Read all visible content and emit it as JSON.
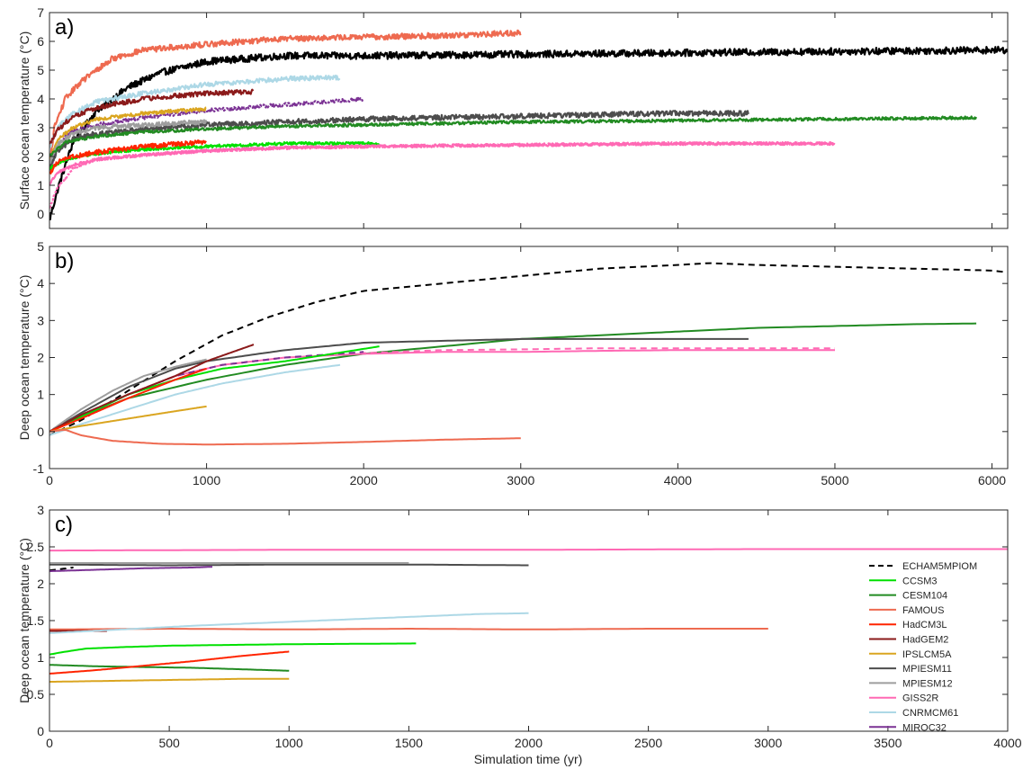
{
  "xlabel": "Simulation time (yr)",
  "chart_data": [
    {
      "panel": "a)",
      "type": "line",
      "ylabel": "Surface ocean temperature (°C)",
      "xlim": [
        0,
        6100
      ],
      "ylim": [
        -0.5,
        7
      ],
      "xticks": [],
      "yticks": [
        0,
        1,
        2,
        3,
        4,
        5,
        6,
        7
      ],
      "series": [
        {
          "color": "#000000",
          "dashed": false,
          "noise": 0.12,
          "x": [
            0,
            60,
            150,
            300,
            500,
            700,
            1000,
            1500,
            2000,
            3000,
            4000,
            5000,
            6100
          ],
          "values": [
            -0.2,
            1.0,
            2.5,
            3.6,
            4.4,
            4.9,
            5.3,
            5.5,
            5.5,
            5.55,
            5.6,
            5.65,
            5.7
          ]
        },
        {
          "color": "#EE6A50",
          "dashed": false,
          "noise": 0.1,
          "x": [
            0,
            30,
            100,
            200,
            400,
            600,
            1000,
            1500,
            2000,
            2500,
            3000
          ],
          "values": [
            1.6,
            3.0,
            4.0,
            4.6,
            5.4,
            5.7,
            5.9,
            6.1,
            6.15,
            6.2,
            6.3
          ]
        },
        {
          "color": "#ADD8E6",
          "dashed": false,
          "noise": 0.08,
          "x": [
            0,
            50,
            150,
            300,
            600,
            1000,
            1500,
            1850
          ],
          "values": [
            2.3,
            3.0,
            3.5,
            3.9,
            4.2,
            4.5,
            4.7,
            4.75
          ]
        },
        {
          "color": "#8B1A1A",
          "dashed": false,
          "noise": 0.08,
          "x": [
            0,
            50,
            150,
            300,
            600,
            1000,
            1300
          ],
          "values": [
            2.4,
            2.9,
            3.4,
            3.7,
            4.0,
            4.2,
            4.25
          ]
        },
        {
          "color": "#7B3294",
          "dashed": true,
          "noise": 0.06,
          "x": [
            0,
            60,
            150,
            300,
            600,
            1000,
            1500,
            2000
          ],
          "values": [
            1.5,
            2.5,
            2.9,
            3.1,
            3.35,
            3.6,
            3.8,
            4.0
          ]
        },
        {
          "color": "#DAA520",
          "dashed": false,
          "noise": 0.06,
          "x": [
            0,
            50,
            150,
            300,
            600,
            1000
          ],
          "values": [
            1.8,
            2.6,
            3.0,
            3.3,
            3.5,
            3.65
          ]
        },
        {
          "color": "#4D4D4D",
          "dashed": false,
          "noise": 0.09,
          "x": [
            0,
            50,
            150,
            300,
            600,
            1000,
            1500,
            2000,
            2500,
            3000,
            3500,
            4000,
            4450
          ],
          "values": [
            1.6,
            2.2,
            2.6,
            2.8,
            2.95,
            3.1,
            3.2,
            3.3,
            3.35,
            3.4,
            3.45,
            3.5,
            3.5
          ]
        },
        {
          "color": "#9E9E9E",
          "dashed": false,
          "noise": 0.08,
          "x": [
            0,
            50,
            150,
            300,
            600,
            1000
          ],
          "values": [
            1.8,
            2.4,
            2.8,
            3.0,
            3.1,
            3.2
          ]
        },
        {
          "color": "#228B22",
          "dashed": false,
          "noise": 0.05,
          "x": [
            0,
            100,
            300,
            600,
            1000,
            1500,
            2000,
            3000,
            4000,
            5000,
            5900
          ],
          "values": [
            2.0,
            2.5,
            2.7,
            2.85,
            2.95,
            3.05,
            3.1,
            3.2,
            3.25,
            3.3,
            3.35
          ]
        },
        {
          "color": "#00E000",
          "dashed": false,
          "noise": 0.05,
          "x": [
            0,
            100,
            300,
            600,
            1000,
            1500,
            2100
          ],
          "values": [
            1.6,
            1.9,
            2.1,
            2.25,
            2.35,
            2.45,
            2.45
          ]
        },
        {
          "color": "#FF2400",
          "dashed": false,
          "noise": 0.08,
          "x": [
            0,
            50,
            150,
            300,
            600,
            1000
          ],
          "values": [
            1.4,
            1.8,
            2.0,
            2.15,
            2.35,
            2.5
          ]
        },
        {
          "color": "#FF69B4",
          "dashed": true,
          "noise": 0.05,
          "x": [
            0,
            40,
            150,
            300,
            600,
            1000,
            1500,
            2000,
            3000,
            4000,
            5000
          ],
          "values": [
            0.2,
            0.8,
            1.6,
            1.9,
            2.05,
            2.2,
            2.3,
            2.35,
            2.4,
            2.45,
            2.45
          ]
        },
        {
          "color": "#FF69B4",
          "dashed": false,
          "noise": 0.05,
          "x": [
            0,
            40,
            150,
            300,
            600,
            1000,
            1500,
            2000,
            3000,
            4000,
            5000
          ],
          "values": [
            1.0,
            1.4,
            1.7,
            1.9,
            2.05,
            2.2,
            2.3,
            2.35,
            2.4,
            2.45,
            2.45
          ]
        }
      ]
    },
    {
      "panel": "b)",
      "type": "line",
      "ylabel": "Deep ocean temperature (°C)",
      "xlim": [
        0,
        6100
      ],
      "ylim": [
        -1,
        5
      ],
      "xticks": [
        0,
        1000,
        2000,
        3000,
        4000,
        5000,
        6000
      ],
      "yticks": [
        -1,
        0,
        1,
        2,
        3,
        4,
        5
      ],
      "series": [
        {
          "color": "#000000",
          "dashed": true,
          "x": [
            0,
            200,
            500,
            800,
            1100,
            1400,
            1700,
            2000,
            2500,
            3000,
            3500,
            4000,
            4200,
            4500,
            5000,
            5500,
            6000,
            6100
          ],
          "values": [
            -0.1,
            0.3,
            1.1,
            1.9,
            2.6,
            3.1,
            3.5,
            3.8,
            4.0,
            4.2,
            4.4,
            4.5,
            4.55,
            4.5,
            4.45,
            4.4,
            4.35,
            4.3
          ]
        },
        {
          "color": "#228B22",
          "dashed": false,
          "x": [
            0,
            200,
            500,
            1000,
            1500,
            2000,
            2500,
            3000,
            3500,
            4000,
            4500,
            5000,
            5500,
            5900
          ],
          "values": [
            0,
            0.4,
            0.9,
            1.4,
            1.8,
            2.1,
            2.3,
            2.5,
            2.6,
            2.7,
            2.8,
            2.85,
            2.9,
            2.92
          ]
        },
        {
          "color": "#4D4D4D",
          "dashed": false,
          "x": [
            0,
            200,
            500,
            800,
            1000,
            1500,
            2000,
            2500,
            3000,
            3500,
            4000,
            4450
          ],
          "values": [
            0,
            0.5,
            1.2,
            1.7,
            1.9,
            2.2,
            2.4,
            2.45,
            2.5,
            2.5,
            2.5,
            2.5
          ]
        },
        {
          "color": "#9E9E9E",
          "dashed": false,
          "x": [
            0,
            200,
            400,
            600,
            800,
            1000
          ],
          "values": [
            0,
            0.6,
            1.1,
            1.5,
            1.75,
            1.95
          ]
        },
        {
          "color": "#FF69B4",
          "dashed": false,
          "x": [
            0,
            200,
            500,
            800,
            1100,
            1500,
            2000,
            2500,
            3000,
            3500,
            4000,
            4500,
            5000
          ],
          "values": [
            0,
            0.4,
            1.0,
            1.5,
            1.8,
            2.0,
            2.1,
            2.15,
            2.15,
            2.18,
            2.2,
            2.2,
            2.2
          ]
        },
        {
          "color": "#FF69B4",
          "dashed": true,
          "x": [
            0,
            200,
            500,
            800,
            1100,
            1500,
            2000,
            2500,
            3000,
            3500,
            4000,
            4500,
            5000
          ],
          "values": [
            0,
            0.4,
            1.0,
            1.5,
            1.8,
            2.0,
            2.12,
            2.2,
            2.22,
            2.25,
            2.25,
            2.25,
            2.25
          ]
        },
        {
          "color": "#7B3294",
          "dashed": true,
          "x": [
            0,
            200,
            500,
            800,
            1100,
            1500,
            2000
          ],
          "values": [
            0,
            0.4,
            1.0,
            1.5,
            1.8,
            2.0,
            2.15
          ]
        },
        {
          "color": "#00E000",
          "dashed": false,
          "x": [
            0,
            200,
            500,
            800,
            1100,
            1500,
            1800,
            2100
          ],
          "values": [
            0,
            0.4,
            1.0,
            1.4,
            1.7,
            1.9,
            2.1,
            2.3
          ]
        },
        {
          "color": "#8B1A1A",
          "dashed": false,
          "x": [
            0,
            200,
            500,
            800,
            1000,
            1300
          ],
          "values": [
            0,
            0.45,
            1.0,
            1.5,
            1.9,
            2.35
          ]
        },
        {
          "color": "#FF2400",
          "dashed": false,
          "x": [
            0,
            200,
            500,
            800,
            1000
          ],
          "values": [
            0,
            0.35,
            0.9,
            1.4,
            1.7
          ]
        },
        {
          "color": "#ADD8E6",
          "dashed": false,
          "x": [
            0,
            200,
            500,
            800,
            1100,
            1500,
            1850
          ],
          "values": [
            -0.1,
            0.2,
            0.6,
            1.0,
            1.3,
            1.6,
            1.8
          ]
        },
        {
          "color": "#DAA520",
          "dashed": false,
          "x": [
            0,
            200,
            500,
            800,
            1000
          ],
          "values": [
            0,
            0.15,
            0.35,
            0.55,
            0.68
          ]
        },
        {
          "color": "#EE6A50",
          "dashed": false,
          "x": [
            0,
            100,
            200,
            400,
            700,
            1000,
            1500,
            2000,
            2500,
            3000
          ],
          "values": [
            0,
            0.05,
            -0.1,
            -0.25,
            -0.33,
            -0.35,
            -0.33,
            -0.28,
            -0.22,
            -0.18
          ]
        }
      ]
    },
    {
      "panel": "c)",
      "type": "line",
      "ylabel": "Deep ocean temperature (°C)",
      "xlim": [
        0,
        4000
      ],
      "ylim": [
        0,
        3
      ],
      "xticks": [
        0,
        500,
        1000,
        1500,
        2000,
        2500,
        3000,
        3500,
        4000
      ],
      "yticks": [
        0,
        0.5,
        1,
        1.5,
        2,
        2.5,
        3
      ],
      "legend": {
        "placement": "right"
      },
      "series": [
        {
          "name": "ECHAM5MPIOM",
          "color": "#000000",
          "dashed": true,
          "x": [
            0,
            50,
            100
          ],
          "values": [
            2.18,
            2.2,
            2.22
          ]
        },
        {
          "name": "CCSM3",
          "color": "#00E000",
          "dashed": false,
          "x": [
            0,
            50,
            150,
            300,
            500,
            1000,
            1530
          ],
          "values": [
            1.04,
            1.07,
            1.12,
            1.14,
            1.16,
            1.18,
            1.19
          ]
        },
        {
          "name": "CESM104",
          "color": "#228B22",
          "dashed": false,
          "x": [
            0,
            200,
            400,
            600,
            800,
            1000
          ],
          "values": [
            0.9,
            0.88,
            0.87,
            0.86,
            0.84,
            0.82
          ]
        },
        {
          "name": "FAMOUS",
          "color": "#EE6A50",
          "dashed": false,
          "x": [
            0,
            500,
            1000,
            1500,
            2000,
            2500,
            3000
          ],
          "values": [
            1.38,
            1.39,
            1.38,
            1.39,
            1.38,
            1.39,
            1.39
          ]
        },
        {
          "name": "HadCM3L",
          "color": "#FF2400",
          "dashed": false,
          "x": [
            0,
            200,
            400,
            600,
            800,
            1000
          ],
          "values": [
            0.78,
            0.83,
            0.89,
            0.95,
            1.02,
            1.08
          ]
        },
        {
          "name": "HadGEM2",
          "color": "#8B1A1A",
          "dashed": false,
          "x": [
            0,
            100,
            240
          ],
          "values": [
            1.36,
            1.36,
            1.36
          ]
        },
        {
          "name": "IPSLCM5A",
          "color": "#DAA520",
          "dashed": false,
          "x": [
            0,
            200,
            400,
            600,
            800,
            1000
          ],
          "values": [
            0.67,
            0.68,
            0.69,
            0.7,
            0.71,
            0.71
          ]
        },
        {
          "name": "MPIESM11",
          "color": "#4D4D4D",
          "dashed": false,
          "x": [
            0,
            500,
            1000,
            1500,
            2000
          ],
          "values": [
            2.26,
            2.25,
            2.26,
            2.26,
            2.25
          ]
        },
        {
          "name": "MPIESM12",
          "color": "#9E9E9E",
          "dashed": false,
          "x": [
            0,
            500,
            1000,
            1500
          ],
          "values": [
            2.28,
            2.28,
            2.28,
            2.28
          ]
        },
        {
          "name": "GISS2R",
          "color": "#FF69B4",
          "dashed": false,
          "x": [
            0,
            1000,
            2000,
            3000,
            4000
          ],
          "values": [
            2.45,
            2.46,
            2.46,
            2.47,
            2.47
          ]
        },
        {
          "name": "CNRMCM61",
          "color": "#ADD8E6",
          "dashed": false,
          "x": [
            0,
            300,
            600,
            900,
            1200,
            1500,
            1800,
            2000
          ],
          "values": [
            1.33,
            1.38,
            1.43,
            1.47,
            1.51,
            1.55,
            1.59,
            1.6
          ]
        },
        {
          "name": "MIROC32",
          "color": "#7B3294",
          "dashed": false,
          "x": [
            0,
            200,
            400,
            600,
            680
          ],
          "values": [
            2.17,
            2.19,
            2.21,
            2.22,
            2.23
          ]
        }
      ]
    }
  ]
}
